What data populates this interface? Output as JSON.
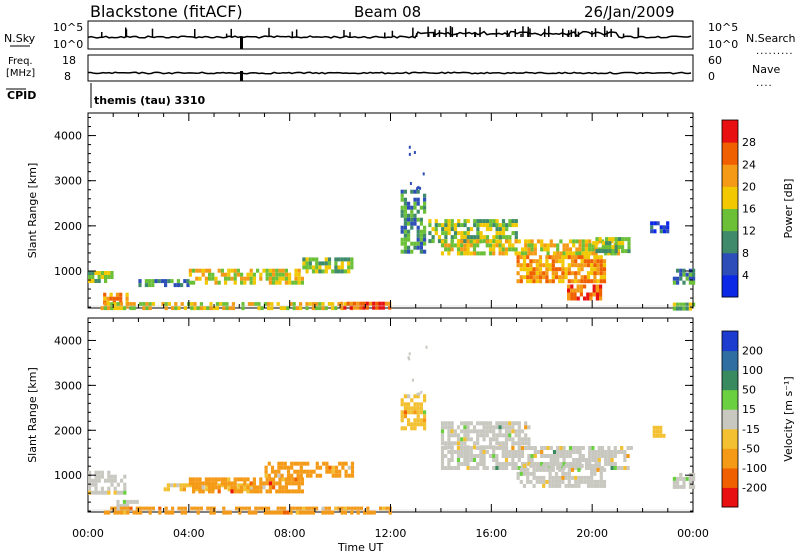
{
  "header": {
    "station": "Blackstone (fitACF)",
    "beam": "Beam 08",
    "date": "26/Jan/2009"
  },
  "aux_panels": {
    "nsky": {
      "label": "N.Sky",
      "left_ticks": [
        "10^5",
        "10^0"
      ],
      "right_ticks": [
        "10^5",
        "10^0"
      ],
      "right_label": "N.Search"
    },
    "freq": {
      "label_top": "Freq.",
      "label_unit": "[MHz]",
      "left_ticks": [
        "18",
        "8"
      ],
      "right_ticks": [
        "60",
        "0"
      ],
      "right_label": "Nave"
    },
    "cpid": {
      "label": "CPID",
      "text": "themis (tau) 3310"
    }
  },
  "x_axis": {
    "label": "Time UT",
    "ticks": [
      "00:00",
      "04:00",
      "08:00",
      "12:00",
      "16:00",
      "20:00",
      "00:00"
    ]
  },
  "chart_data": [
    {
      "type": "heatmap",
      "title": "",
      "ylabel": "Slant Range [km]",
      "xlabel": "",
      "xlim": [
        0,
        24
      ],
      "ylim": [
        180,
        4500
      ],
      "yticks": [
        "1000",
        "2000",
        "3000",
        "4000"
      ],
      "colorbar": {
        "label": "Power [dB]",
        "levels": [
          "4",
          "8",
          "12",
          "16",
          "20",
          "24",
          "28"
        ],
        "colors": [
          "#0a28e6",
          "#2d4db8",
          "#3f8a6a",
          "#6cc038",
          "#f2c800",
          "#f49a16",
          "#f06000",
          "#e81010"
        ],
        "range": [
          0,
          30
        ]
      },
      "regions": [
        {
          "t": [
            0.0,
            1.0
          ],
          "r": [
            750,
            1000
          ],
          "level": 3
        },
        {
          "t": [
            0.6,
            1.6
          ],
          "r": [
            200,
            520
          ],
          "level": 5
        },
        {
          "t": [
            2.0,
            4.0
          ],
          "r": [
            720,
            820
          ],
          "level": 2
        },
        {
          "t": [
            4.0,
            8.5
          ],
          "r": [
            730,
            1050
          ],
          "level": 4
        },
        {
          "t": [
            8.5,
            10.5
          ],
          "r": [
            950,
            1300
          ],
          "level": 3
        },
        {
          "t": [
            0.5,
            10.5
          ],
          "r": [
            200,
            310
          ],
          "level": 4
        },
        {
          "t": [
            10.0,
            12.0
          ],
          "r": [
            200,
            320
          ],
          "level": 6
        },
        {
          "t": [
            12.4,
            13.3
          ],
          "r": [
            1400,
            2800
          ],
          "level": 2
        },
        {
          "t": [
            13.5,
            17.0
          ],
          "r": [
            1700,
            2150
          ],
          "level": 3
        },
        {
          "t": [
            14.0,
            21.0
          ],
          "r": [
            1350,
            1700
          ],
          "level": 4
        },
        {
          "t": [
            17.0,
            20.5
          ],
          "r": [
            800,
            1350
          ],
          "level": 5
        },
        {
          "t": [
            19.0,
            20.3
          ],
          "r": [
            350,
            700
          ],
          "level": 6
        },
        {
          "t": [
            20.0,
            21.5
          ],
          "r": [
            1450,
            1750
          ],
          "level": 3
        },
        {
          "t": [
            22.3,
            23.0
          ],
          "r": [
            1900,
            2100
          ],
          "level": 1
        },
        {
          "t": [
            23.2,
            24.0
          ],
          "r": [
            750,
            1050
          ],
          "level": 2
        },
        {
          "t": [
            23.2,
            24.0
          ],
          "r": [
            200,
            300
          ],
          "level": 3
        }
      ]
    },
    {
      "type": "heatmap",
      "title": "",
      "ylabel": "Slant Range [km]",
      "xlabel": "Time UT",
      "xlim": [
        0,
        24
      ],
      "ylim": [
        180,
        4500
      ],
      "yticks": [
        "1000",
        "2000",
        "3000",
        "4000"
      ],
      "colorbar": {
        "label": "Velocity [m s⁻¹]",
        "levels": [
          "200",
          "100",
          "50",
          "15",
          "-15",
          "-50",
          "-100",
          "-200"
        ],
        "colors": [
          "#1c3cd0",
          "#2f6ea0",
          "#3a8a60",
          "#6ad040",
          "#c8c8c0",
          "#f2c030",
          "#f49a16",
          "#f06000",
          "#e81010"
        ],
        "range": [
          -250,
          250
        ]
      },
      "regions": [
        {
          "t": [
            0.0,
            1.5
          ],
          "r": [
            600,
            1100
          ],
          "level": 4
        },
        {
          "t": [
            1.0,
            2.0
          ],
          "r": [
            200,
            450
          ],
          "level": 4
        },
        {
          "t": [
            3.0,
            6.5
          ],
          "r": [
            720,
            820
          ],
          "level": 5
        },
        {
          "t": [
            4.0,
            8.5
          ],
          "r": [
            650,
            950
          ],
          "level": 6
        },
        {
          "t": [
            7.0,
            10.5
          ],
          "r": [
            950,
            1300
          ],
          "level": 6
        },
        {
          "t": [
            0.5,
            12.0
          ],
          "r": [
            200,
            300
          ],
          "level": 6
        },
        {
          "t": [
            12.4,
            13.3
          ],
          "r": [
            2000,
            2800
          ],
          "level": 5
        },
        {
          "t": [
            14.0,
            17.5
          ],
          "r": [
            1600,
            2200
          ],
          "level": 4
        },
        {
          "t": [
            14.0,
            21.5
          ],
          "r": [
            1200,
            1650
          ],
          "level": 4
        },
        {
          "t": [
            17.0,
            20.5
          ],
          "r": [
            750,
            1250
          ],
          "level": 4
        },
        {
          "t": [
            22.4,
            22.9
          ],
          "r": [
            1900,
            2100
          ],
          "level": 5
        },
        {
          "t": [
            23.2,
            24.0
          ],
          "r": [
            700,
            1050
          ],
          "level": 4
        }
      ]
    }
  ]
}
